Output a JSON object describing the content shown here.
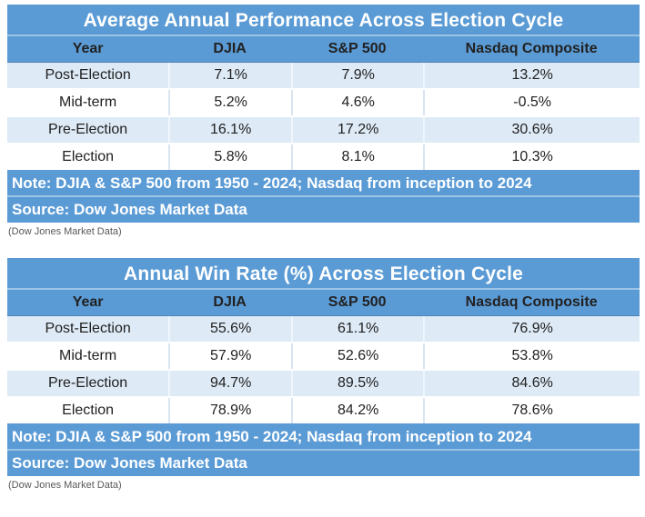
{
  "colors": {
    "blue": "#5b9bd5",
    "blue_sep": "#9dc3e6",
    "header_edge": "#4e82b8",
    "row_alt": "#deeaf6",
    "text_dark": "#212121",
    "caption_gray": "#595959",
    "divider_on_white": "#d9e4f0",
    "divider_on_alt": "#eef5fc"
  },
  "chart_data": [
    {
      "type": "table",
      "title": "Average Annual Performance Across Election Cycle",
      "columns": [
        "Year",
        "DJIA",
        "S&P 500",
        "Nasdaq Composite"
      ],
      "rows": [
        [
          "Post-Election",
          "7.1%",
          "7.9%",
          "13.2%"
        ],
        [
          "Mid-term",
          "5.2%",
          "4.6%",
          "-0.5%"
        ],
        [
          "Pre-Election",
          "16.1%",
          "17.2%",
          "30.6%"
        ],
        [
          "Election",
          "5.8%",
          "8.1%",
          "10.3%"
        ]
      ],
      "note": "Note: DJIA & S&P 500 from 1950 - 2024; Nasdaq from inception to 2024",
      "source": "Source: Dow Jones Market Data",
      "caption": "(Dow Jones Market Data)"
    },
    {
      "type": "table",
      "title": "Annual Win Rate (%) Across Election Cycle",
      "columns": [
        "Year",
        "DJIA",
        "S&P 500",
        "Nasdaq Composite"
      ],
      "rows": [
        [
          "Post-Election",
          "55.6%",
          "61.1%",
          "76.9%"
        ],
        [
          "Mid-term",
          "57.9%",
          "52.6%",
          "53.8%"
        ],
        [
          "Pre-Election",
          "94.7%",
          "89.5%",
          "84.6%"
        ],
        [
          "Election",
          "78.9%",
          "84.2%",
          "78.6%"
        ]
      ],
      "note": "Note: DJIA & S&P 500 from 1950 - 2024; Nasdaq from inception to 2024",
      "source": "Source: Dow Jones Market Data",
      "caption": "(Dow Jones Market Data)"
    }
  ]
}
